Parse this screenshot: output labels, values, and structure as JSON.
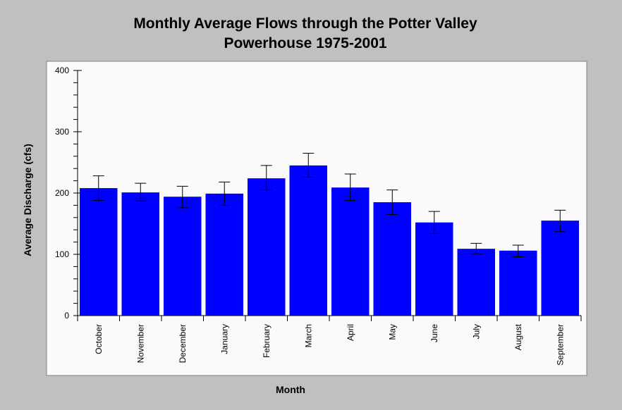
{
  "chart_data": {
    "type": "bar",
    "title_lines": [
      "Monthly Average Flows through the Potter Valley",
      "Powerhouse 1975-2001"
    ],
    "xlabel": "Month",
    "ylabel": "Average Discharge (cfs)",
    "ylim": [
      0,
      400
    ],
    "yticks": [
      "0",
      "100",
      "200",
      "300",
      "400"
    ],
    "grid": false,
    "bar_color": "#0000ff",
    "plot_background": "#fafafa",
    "categories": [
      "October",
      "November",
      "December",
      "January",
      "February",
      "March",
      "April",
      "May",
      "June",
      "July",
      "August",
      "September"
    ],
    "values": [
      208,
      201,
      194,
      199,
      224,
      245,
      209,
      185,
      152,
      109,
      106,
      155
    ],
    "error_low": [
      188,
      187,
      176,
      180,
      205,
      226,
      188,
      165,
      134,
      101,
      96,
      137
    ],
    "error_high": [
      228,
      216,
      211,
      218,
      245,
      265,
      231,
      205,
      170,
      118,
      115,
      172
    ]
  }
}
